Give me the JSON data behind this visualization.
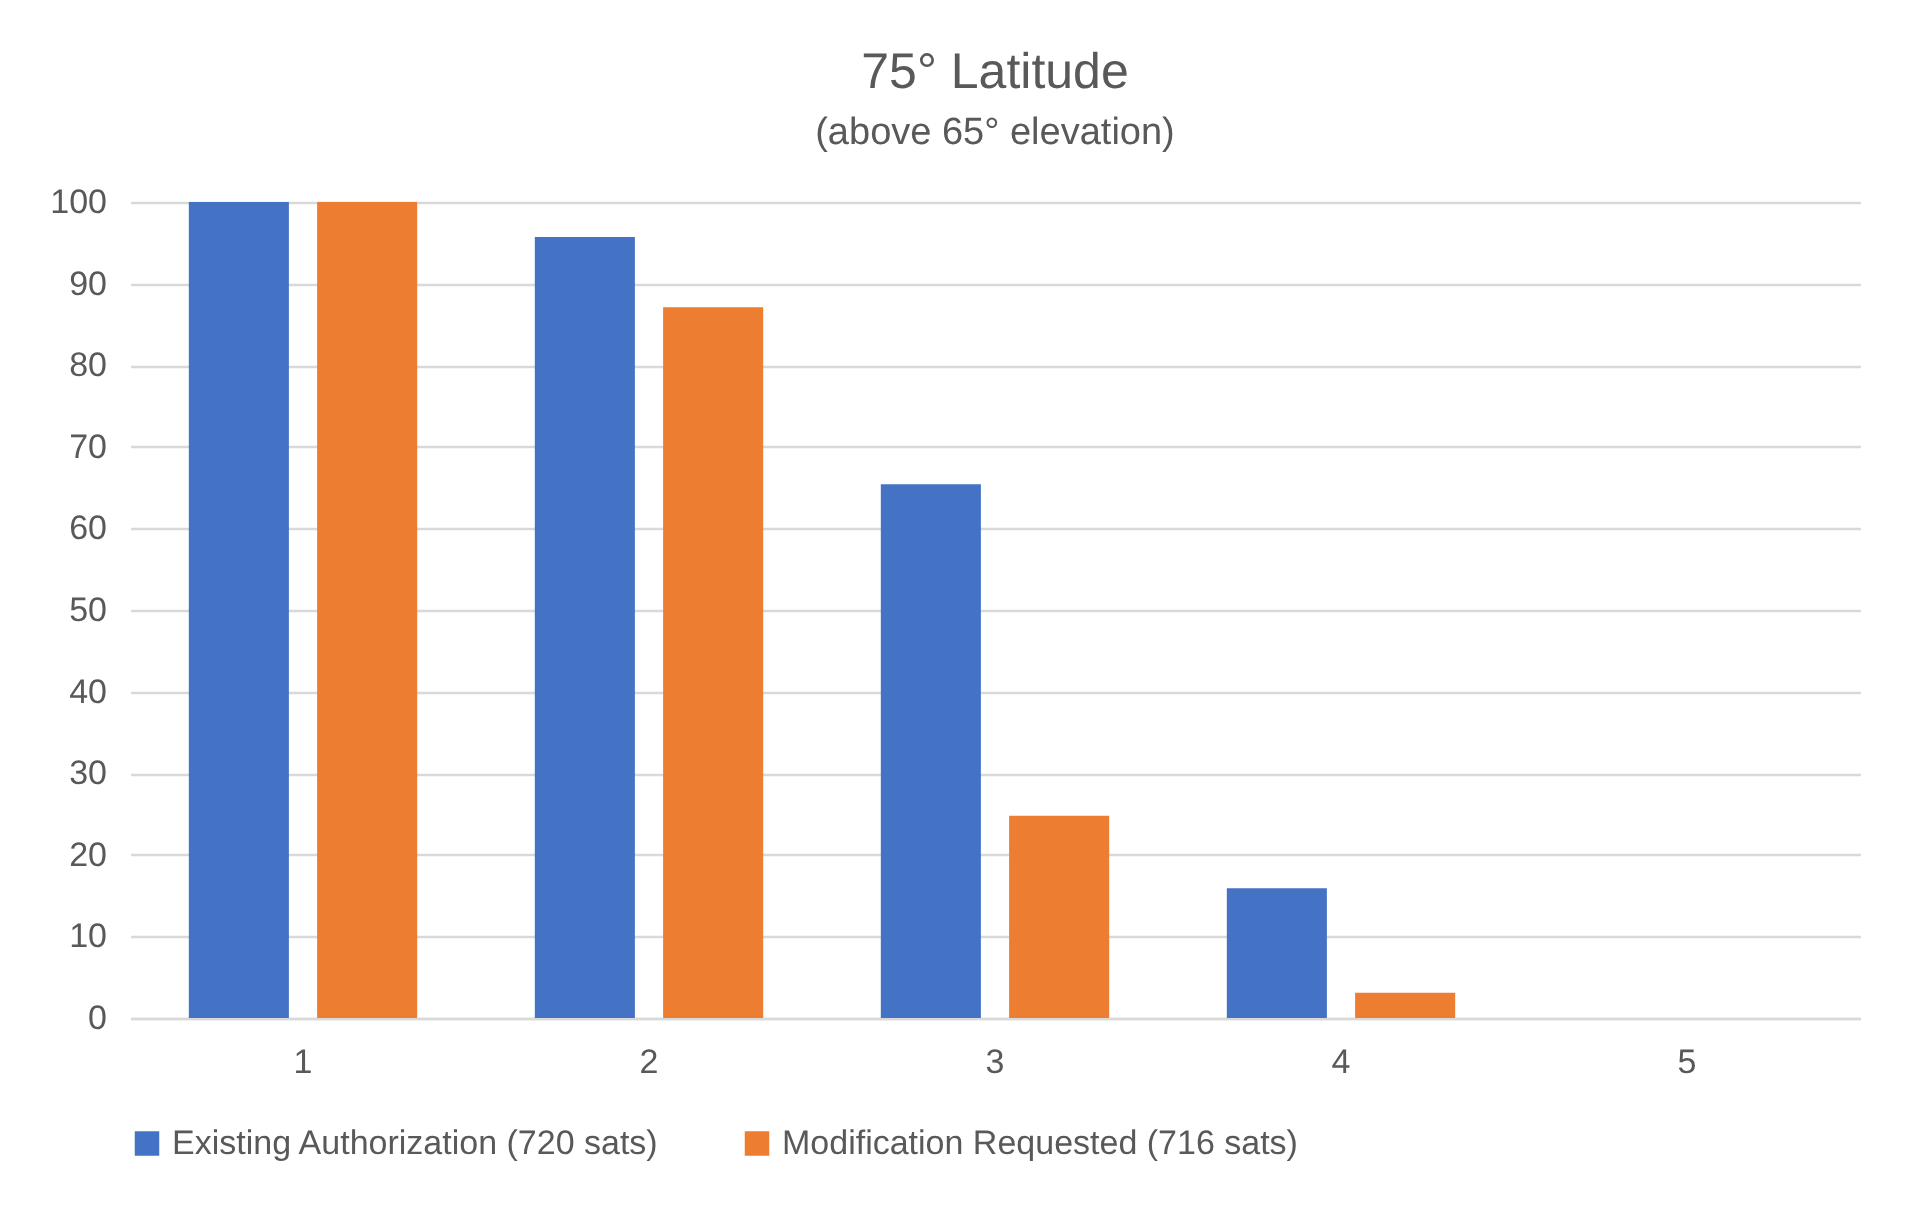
{
  "chart_data": {
    "type": "bar",
    "title": "75° Latitude",
    "subtitle": "(above 65° elevation)",
    "categories": [
      "1",
      "2",
      "3",
      "4",
      "5"
    ],
    "series": [
      {
        "name": "Existing Authorization (720 sats)",
        "color": "#4472c4",
        "values": [
          100,
          95.7,
          65.4,
          15.9,
          0
        ]
      },
      {
        "name": "Modification Requested (716 sats)",
        "color": "#ed7d31",
        "values": [
          100,
          87.1,
          24.8,
          3.1,
          0
        ]
      }
    ],
    "ylim": [
      0,
      100
    ],
    "yticks": [
      0,
      10,
      20,
      30,
      40,
      50,
      60,
      70,
      80,
      90,
      100
    ],
    "grid": "y",
    "legend": "bottom"
  }
}
